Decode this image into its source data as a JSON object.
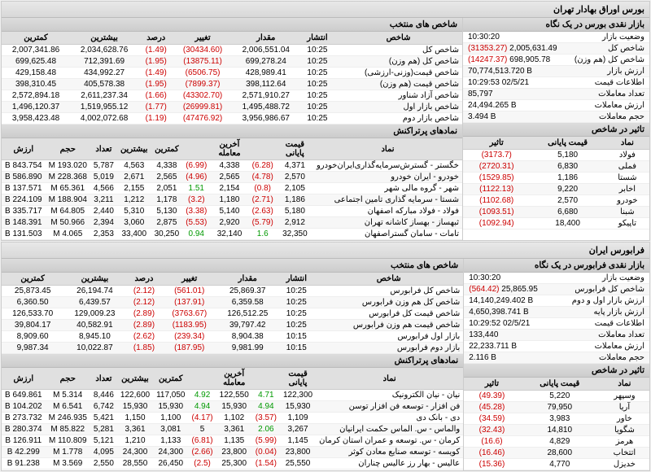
{
  "tse": {
    "title": "بورس اوراق بهادار تهران",
    "glance": {
      "title": "بازار نقدی بورس در یک نگاه",
      "rows": [
        [
          "وضعیت بازار",
          "",
          "10:30:20"
        ],
        [
          "شاخص کل",
          "(31353.27)",
          "2,005,631.49"
        ],
        [
          "شاخص کل (هم وزن)",
          "(14247.37)",
          "698,905.78"
        ],
        [
          "ارزش بازار",
          "",
          "70,774,513.720 B"
        ],
        [
          "اطلاعات قیمت",
          "",
          "10:29:53 02/5/21"
        ],
        [
          "تعداد معاملات",
          "",
          "85,797"
        ],
        [
          "ارزش معاملات",
          "",
          "24,494.265 B"
        ],
        [
          "حجم معاملات",
          "",
          "3.494 B"
        ]
      ]
    },
    "selected": {
      "title": "شاخص های منتخب",
      "cols": [
        "شاخص",
        "انتشار",
        "مقدار",
        "تغییر",
        "درصد",
        "بیشترین",
        "کمترین"
      ],
      "rows": [
        [
          "شاخص کل",
          "10:25",
          "2,006,551.04",
          "(30434.60)",
          "(1.49)",
          "2,034,628.76",
          "2,007,341.86"
        ],
        [
          "شاخص کل (هم وزن)",
          "10:25",
          "699,278.24",
          "(13875.11)",
          "(1.95)",
          "712,391.69",
          "699,625.48"
        ],
        [
          "شاخص قیمت(وزنی-ارزشی)",
          "10:25",
          "428,989.41",
          "(6506.75)",
          "(1.49)",
          "434,992.27",
          "429,158.48"
        ],
        [
          "شاخص قیمت (هم وزن)",
          "10:25",
          "398,112.64",
          "(7899.37)",
          "(1.95)",
          "405,578.38",
          "398,310.45"
        ],
        [
          "شاخص آزاد شناور",
          "10:25",
          "2,571,910.27",
          "(43302.70)",
          "(1.66)",
          "2,611,237.34",
          "2,572,894.18"
        ],
        [
          "شاخص بازار اول",
          "10:25",
          "1,495,488.72",
          "(26999.81)",
          "(1.77)",
          "1,519,955.12",
          "1,496,120.37"
        ],
        [
          "شاخص بازار دوم",
          "10:25",
          "3,956,986.67",
          "(47476.92)",
          "(1.19)",
          "4,002,072.68",
          "3,958,423.48"
        ]
      ]
    },
    "impact": {
      "title": "تاثیر در شاخص",
      "cols": [
        "نماد",
        "قیمت پایانی",
        "تاثیر"
      ],
      "rows": [
        [
          "فولاد",
          "5,180",
          "(3173.7)"
        ],
        [
          "فملی",
          "6,830",
          "(2720.31)"
        ],
        [
          "شستا",
          "1,186",
          "(1529.85)"
        ],
        [
          "اخابر",
          "9,220",
          "(1122.13)"
        ],
        [
          "خودرو",
          "2,570",
          "(1102.68)"
        ],
        [
          "شبنا",
          "6,680",
          "(1093.51)"
        ],
        [
          "تاپیکو",
          "18,400",
          "(1092.94)"
        ]
      ]
    },
    "trans": {
      "title": "نمادهای پرتراکنش",
      "cols": [
        "نماد",
        "قیمت پایانی",
        "",
        "آخرین معامله",
        "",
        "کمترین",
        "بیشترین",
        "تعداد",
        "حجم",
        "ارزش"
      ],
      "rows": [
        [
          "خگستر - گسترش‌سرمایه‌گذاری‌ایران‌خودرو",
          "4,371",
          "(6.28)",
          "4,338",
          "(6.99)",
          "4,338",
          "4,563",
          "5,787",
          "193.020 M",
          "843.754 B"
        ],
        [
          "خودرو - ایران‌ خودرو",
          "2,570",
          "(4.78)",
          "2,565",
          "(4.96)",
          "2,565",
          "2,671",
          "5,019",
          "228.368 M",
          "586.890 B"
        ],
        [
          "شهر - گروه مالی شهر",
          "2,105",
          "(0.8)",
          "2,154",
          "1.51",
          "2,051",
          "2,155",
          "4,566",
          "65.361 M",
          "137.571 B"
        ],
        [
          "شستا - سرمایه گذاری تامین اجتماعی",
          "1,186",
          "(2.71)",
          "1,180",
          "(3.2)",
          "1,178",
          "1,212",
          "3,211",
          "188.904 M",
          "224.109 B"
        ],
        [
          "فولاد - فولاد مبارکه اصفهان",
          "5,180",
          "(2.63)",
          "5,140",
          "(3.38)",
          "5,130",
          "5,310",
          "2,440",
          "64.805 M",
          "335.717 B"
        ],
        [
          "ثبهساز - بهساز کاشانه تهران",
          "2,912",
          "(5.79)",
          "2,920",
          "(5.53)",
          "2,875",
          "3,060",
          "2,394",
          "50.966 M",
          "148.391 B"
        ],
        [
          "تامات - سامان گستراصفهان",
          "32,350",
          "1.6",
          "32,140",
          "0.94",
          "30,250",
          "33,400",
          "2,353",
          "4.065 M",
          "131.503 B"
        ]
      ]
    }
  },
  "ifb": {
    "title": "فرابورس ایران",
    "glance": {
      "title": "بازار نقدی فرابورس در یک نگاه",
      "rows": [
        [
          "وضعیت بازار",
          "",
          "10:30:20"
        ],
        [
          "شاخص کل فرابورس",
          "(564.42)",
          "25,865.95"
        ],
        [
          "ارزش بازار اول و دوم",
          "",
          "14,140,249.402 B"
        ],
        [
          "ارزش بازار پایه",
          "",
          "4,650,398.741 B"
        ],
        [
          "اطلاعات قیمت",
          "",
          "10:29:52 02/5/21"
        ],
        [
          "تعداد معاملات",
          "",
          "133,440"
        ],
        [
          "ارزش معاملات",
          "",
          "22,233.711 B"
        ],
        [
          "حجم معاملات",
          "",
          "2.116 B"
        ]
      ]
    },
    "selected": {
      "title": "شاخص های منتخب",
      "cols": [
        "شاخص",
        "انتشار",
        "مقدار",
        "تغییر",
        "درصد",
        "بیشترین",
        "کمترین"
      ],
      "rows": [
        [
          "شاخص کل فرابورس",
          "10:25",
          "25,869.37",
          "(561.01)",
          "(2.12)",
          "26,194.74",
          "25,873.45"
        ],
        [
          "شاخص کل هم وزن فرابورس",
          "10:25",
          "6,359.58",
          "(137.91)",
          "(2.12)",
          "6,439.57",
          "6,360.50"
        ],
        [
          "شاخص قیمت کل فرابورس",
          "10:25",
          "126,512.25",
          "(3763.67)",
          "(2.89)",
          "129,009.23",
          "126,533.70"
        ],
        [
          "شاخص قیمت هم وزن فرابورس",
          "10:25",
          "39,797.42",
          "(1183.95)",
          "(2.89)",
          "40,582.91",
          "39,804.17"
        ],
        [
          "بازار اول فرابورس",
          "10:15",
          "8,904.38",
          "(239.34)",
          "(2.62)",
          "8,945.10",
          "8,909.60"
        ],
        [
          "بازار دوم فرابورس",
          "10:15",
          "9,981.99",
          "(187.95)",
          "(1.85)",
          "10,022.87",
          "9,987.34"
        ]
      ]
    },
    "impact": {
      "title": "تاثیر در شاخص",
      "cols": [
        "نماد",
        "قیمت پایانی",
        "تاثیر"
      ],
      "rows": [
        [
          "وسپهر",
          "5,220",
          "(49.39)"
        ],
        [
          "آریا",
          "79,950",
          "(45.28)"
        ],
        [
          "خاور",
          "3,983",
          "(34.59)"
        ],
        [
          "شگویا",
          "14,810",
          "(32.43)"
        ],
        [
          "هرمز",
          "4,829",
          "(16.6)"
        ],
        [
          "اتتخاب",
          "28,600",
          "(16.46)"
        ],
        [
          "خدیزل",
          "4,770",
          "(15.36)"
        ]
      ]
    },
    "trans": {
      "title": "نمادهای پرتراکنش",
      "cols": [
        "نماد",
        "قیمت پایانی",
        "",
        "آخرین معامله",
        "",
        "کمترین",
        "بیشترین",
        "تعداد",
        "حجم",
        "ارزش"
      ],
      "rows": [
        [
          "نیان - نیان الکترونیک",
          "122,300",
          "4.71",
          "122,550",
          "4.92",
          "117,050",
          "122,600",
          "8,446",
          "5.314 M",
          "649.861 B"
        ],
        [
          "فن افزار - توسعه فن افزار توسن",
          "15,930",
          "4.94",
          "15,930",
          "4.94",
          "15,930",
          "15,930",
          "6,742",
          "6.541 M",
          "104.202 B"
        ],
        [
          "دی - بانک دی",
          "1,109",
          "(3.57)",
          "1,102",
          "(4.17)",
          "1,100",
          "1,150",
          "5,421",
          "246.935 M",
          "273.732 B"
        ],
        [
          "والماس - س. الماس حکمت ایرانیان",
          "3,267",
          "2.06",
          "3,361",
          "5",
          "3,081",
          "3,361",
          "5,281",
          "85.822 M",
          "280.374 B"
        ],
        [
          "کرمان - س. توسعه و عمران استان کرمان",
          "1,145",
          "(5.99)",
          "1,135",
          "(6.81)",
          "1,133",
          "1,210",
          "5,121",
          "110.809 M",
          "126.911 B"
        ],
        [
          "کویسه - توسعه صنایع معادن کوثر",
          "23,800",
          "(0.04)",
          "23,800",
          "(2.66)",
          "24,300",
          "24,300",
          "4,095",
          "1.778 M",
          "42.299 B"
        ],
        [
          "عالیس - بهار رز عالیس چناران",
          "25,550",
          "(1.54)",
          "25,300",
          "(2.5)",
          "26,450",
          "28,550",
          "2,550",
          "3.569 M",
          "91.238 B"
        ]
      ]
    }
  }
}
